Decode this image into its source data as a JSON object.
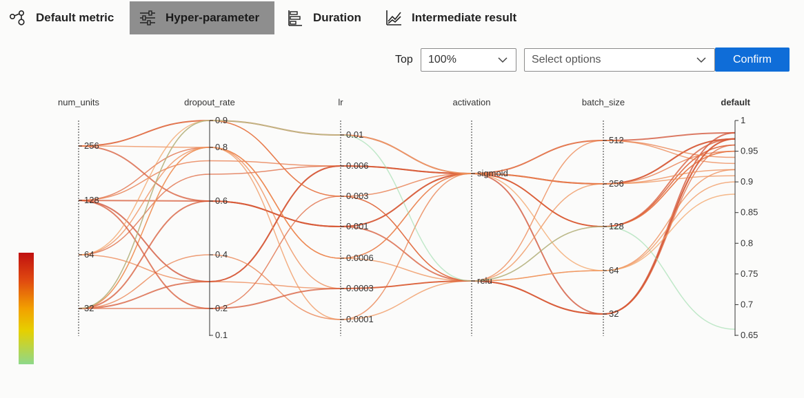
{
  "tabs": [
    {
      "label": "Default metric",
      "icon": "node-graph-icon",
      "active": false
    },
    {
      "label": "Hyper-parameter",
      "icon": "sliders-icon",
      "active": true
    },
    {
      "label": "Duration",
      "icon": "bar-list-icon",
      "active": false
    },
    {
      "label": "Intermediate result",
      "icon": "line-chart-icon",
      "active": false
    }
  ],
  "toolbar": {
    "top_label": "Top",
    "top_value": "100%",
    "options_placeholder": "Select options",
    "confirm_label": "Confirm"
  },
  "colors": {
    "accent": "#0f6dd8",
    "active_tab": "#8e8e8e",
    "line_high": "#c0392b",
    "line_low": "#f5a25d",
    "line_faint": "#8fd8a0"
  },
  "chart_data": {
    "type": "parallel-coordinates",
    "axes": [
      {
        "name": "num_units",
        "ticks": [
          "256",
          "128",
          "64",
          "32"
        ]
      },
      {
        "name": "dropout_rate",
        "ticks": [
          "0.9",
          "0.8",
          "0.6",
          "0.4",
          "0.2",
          "0.1"
        ]
      },
      {
        "name": "lr",
        "ticks": [
          "0.01",
          "0.006",
          "0.003",
          "0.001",
          "0.0006",
          "0.0003",
          "0.0001"
        ]
      },
      {
        "name": "activation",
        "ticks": [
          "sigmoid",
          "relu"
        ]
      },
      {
        "name": "batch_size",
        "ticks": [
          "512",
          "256",
          "128",
          "64",
          "32"
        ]
      },
      {
        "name": "default",
        "bold": true,
        "ticks": [
          "1",
          "0.95",
          "0.9",
          "0.85",
          "0.8",
          "0.75",
          "0.7",
          "0.65"
        ]
      }
    ],
    "trials": [
      {
        "num_units": "256",
        "dropout_rate": 0.9,
        "lr": "0.01",
        "activation": "sigmoid",
        "batch_size": "512",
        "default": 0.98
      },
      {
        "num_units": "256",
        "dropout_rate": 0.6,
        "lr": "0.001",
        "activation": "sigmoid",
        "batch_size": "256",
        "default": 0.97
      },
      {
        "num_units": "256",
        "dropout_rate": 0.9,
        "lr": "0.003",
        "activation": "relu",
        "batch_size": "128",
        "default": 0.95
      },
      {
        "num_units": "128",
        "dropout_rate": 0.3,
        "lr": "0.006",
        "activation": "sigmoid",
        "batch_size": "32",
        "default": 0.98
      },
      {
        "num_units": "128",
        "dropout_rate": 0.8,
        "lr": "0.0006",
        "activation": "sigmoid",
        "batch_size": "128",
        "default": 0.96
      },
      {
        "num_units": "128",
        "dropout_rate": 0.6,
        "lr": "0.001",
        "activation": "relu",
        "batch_size": "32",
        "default": 0.97
      },
      {
        "num_units": "128",
        "dropout_rate": 0.75,
        "lr": "0.006",
        "activation": "sigmoid",
        "batch_size": "256",
        "default": 0.95
      },
      {
        "num_units": "64",
        "dropout_rate": 0.8,
        "lr": "0.0003",
        "activation": "relu",
        "batch_size": "64",
        "default": 0.92
      },
      {
        "num_units": "64",
        "dropout_rate": 0.7,
        "lr": "0.006",
        "activation": "sigmoid",
        "batch_size": "128",
        "default": 0.96
      },
      {
        "num_units": "64",
        "dropout_rate": 0.3,
        "lr": "0.0003",
        "activation": "relu",
        "batch_size": "512",
        "default": 0.93
      },
      {
        "num_units": "32",
        "dropout_rate": 0.3,
        "lr": "0.006",
        "activation": "sigmoid",
        "batch_size": "256",
        "default": 0.97
      },
      {
        "num_units": "32",
        "dropout_rate": 0.2,
        "lr": "0.003",
        "activation": "relu",
        "batch_size": "32",
        "default": 0.96
      },
      {
        "num_units": "32",
        "dropout_rate": 0.8,
        "lr": "0.0001",
        "activation": "relu",
        "batch_size": "64",
        "default": 0.9
      },
      {
        "num_units": "32",
        "dropout_rate": 0.9,
        "lr": "0.003",
        "activation": "sigmoid",
        "batch_size": "128",
        "default": 0.95
      },
      {
        "num_units": "32",
        "dropout_rate": 0.8,
        "lr": "0.0006",
        "activation": "relu",
        "batch_size": "256",
        "default": 0.91
      },
      {
        "num_units": "32",
        "dropout_rate": 0.4,
        "lr": "0.0001",
        "activation": "sigmoid",
        "batch_size": "512",
        "default": 0.94
      },
      {
        "num_units": "32",
        "dropout_rate": 0.6,
        "lr": "0.001",
        "activation": "sigmoid",
        "batch_size": "128",
        "default": 0.97
      },
      {
        "num_units": "128",
        "dropout_rate": 0.2,
        "lr": "0.0003",
        "activation": "relu",
        "batch_size": "32",
        "default": 0.97
      },
      {
        "num_units": "256",
        "dropout_rate": 0.8,
        "lr": "0.0006",
        "activation": "sigmoid",
        "batch_size": "256",
        "default": 0.92
      },
      {
        "num_units": "64",
        "dropout_rate": 0.9,
        "lr": "0.01",
        "activation": "sigmoid",
        "batch_size": "64",
        "default": 0.88
      },
      {
        "num_units": "32",
        "dropout_rate": 0.9,
        "lr": "0.01",
        "activation": "relu",
        "batch_size": "128",
        "default": 0.66
      }
    ],
    "color_scale": [
      "#c01010",
      "#e04a10",
      "#f2a000",
      "#e6d000",
      "#8ed88a"
    ]
  }
}
